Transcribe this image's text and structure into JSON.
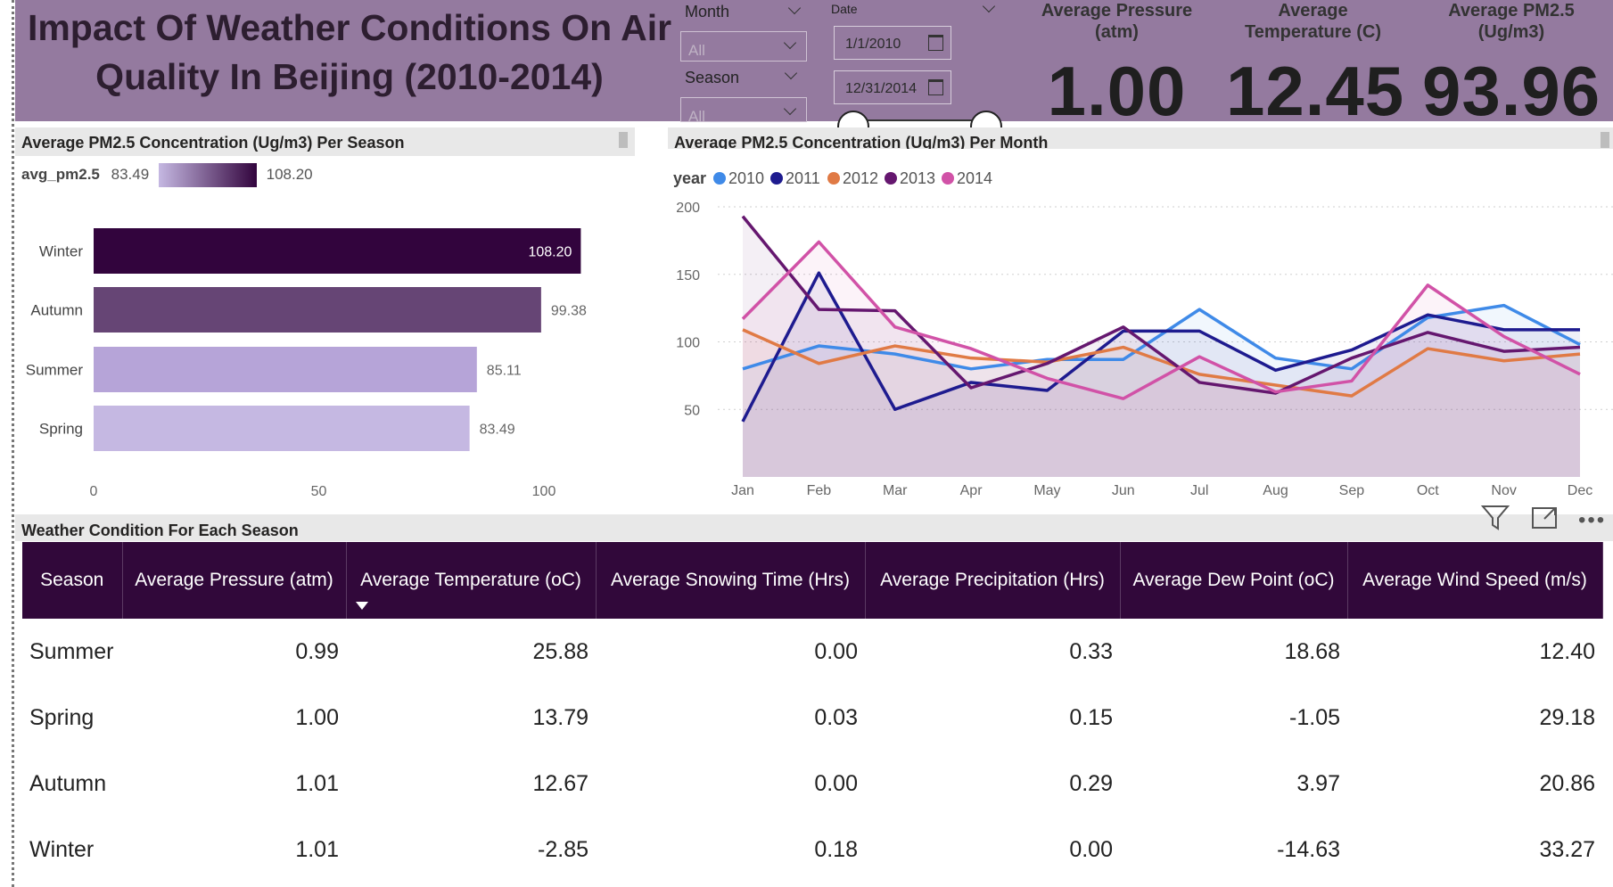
{
  "header": {
    "title": "Impact Of Weather Conditions On Air Quality In Beijing (2010-2014)",
    "colors": {
      "background": "#947a9f",
      "dark": "#31083a"
    }
  },
  "filters": {
    "month": {
      "label": "Month",
      "value": "All"
    },
    "season": {
      "label": "Season",
      "value": "All"
    },
    "date": {
      "label": "Date",
      "start": "1/1/2010",
      "end": "12/31/2014"
    }
  },
  "kpis": [
    {
      "title": "Average Pressure (atm)",
      "value": "1.00"
    },
    {
      "title": "Average Temperature (C)",
      "value": "12.45"
    },
    {
      "title": "Average PM2.5 (Ug/m3)",
      "value": "93.96"
    }
  ],
  "bar_chart": {
    "title": "Average PM2.5 Concentration (Ug/m3) Per  Season",
    "legend": {
      "name": "avg_pm2.5",
      "min": "83.49",
      "max": "108.20"
    }
  },
  "line_chart": {
    "title": "Average PM2.5 Concentration (Ug/m3) Per Month",
    "legend_title": "year"
  },
  "chart_data": [
    {
      "type": "bar",
      "orientation": "horizontal",
      "title": "Average PM2.5 Concentration (Ug/m3) Per  Season",
      "categories": [
        "Winter",
        "Autumn",
        "Summer",
        "Spring"
      ],
      "values": [
        108.2,
        99.38,
        85.11,
        83.49
      ],
      "value_labels": [
        "108.20",
        "99.38",
        "85.11",
        "83.49"
      ],
      "colors": [
        "#32043d",
        "#664575",
        "#b6a4d8",
        "#c5b8e2"
      ],
      "xlim": [
        0,
        110
      ],
      "xticks": [
        "0",
        "50",
        "100"
      ],
      "legend": "gradient avg_pm2.5 83.49 to 108.20",
      "grid": false
    },
    {
      "type": "line",
      "title": "Average PM2.5 Concentration (Ug/m3) Per Month",
      "categories": [
        "Jan",
        "Feb",
        "Mar",
        "Apr",
        "May",
        "Jun",
        "Jul",
        "Aug",
        "Sep",
        "Oct",
        "Nov",
        "Dec"
      ],
      "ylim": [
        0,
        200
      ],
      "yticks": [
        "200",
        "150",
        "100",
        "50"
      ],
      "legend_title": "year",
      "legend_position": "top-left",
      "grid": true,
      "series": [
        {
          "name": "2010",
          "color": "#3f8ae8",
          "values": [
            80,
            97,
            91,
            80,
            87,
            87,
            124,
            88,
            80,
            118,
            127,
            98
          ]
        },
        {
          "name": "2011",
          "color": "#1e1b8f",
          "values": [
            41,
            151,
            50,
            70,
            64,
            108,
            108,
            79,
            94,
            120,
            109,
            109
          ]
        },
        {
          "name": "2012",
          "color": "#e07a45",
          "values": [
            109,
            84,
            97,
            88,
            85,
            96,
            76,
            68,
            60,
            95,
            86,
            91
          ]
        },
        {
          "name": "2013",
          "color": "#65176f",
          "values": [
            193,
            124,
            123,
            66,
            84,
            111,
            70,
            62,
            88,
            107,
            93,
            96
          ]
        },
        {
          "name": "2014",
          "color": "#d152a7",
          "values": [
            117,
            174,
            111,
            95,
            73,
            58,
            89,
            63,
            71,
            142,
            104,
            76
          ]
        }
      ]
    },
    {
      "type": "table",
      "title": "Weather Condition For Each Season",
      "columns": [
        "Season",
        "Average Pressure (atm)",
        "Average Temperature (oC)",
        "Average Snowing Time (Hrs)",
        "Average Precipitation (Hrs)",
        "Average Dew Point (oC)",
        "Average Wind Speed (m/s)"
      ],
      "rows": [
        [
          "Summer",
          "0.99",
          "25.88",
          "0.00",
          "0.33",
          "18.68",
          "12.40"
        ],
        [
          "Spring",
          "1.00",
          "13.79",
          "0.03",
          "0.15",
          "-1.05",
          "29.18"
        ],
        [
          "Autumn",
          "1.01",
          "12.67",
          "0.00",
          "0.29",
          "3.97",
          "20.86"
        ],
        [
          "Winter",
          "1.01",
          "-2.85",
          "0.18",
          "0.00",
          "-14.63",
          "33.27"
        ]
      ]
    }
  ]
}
